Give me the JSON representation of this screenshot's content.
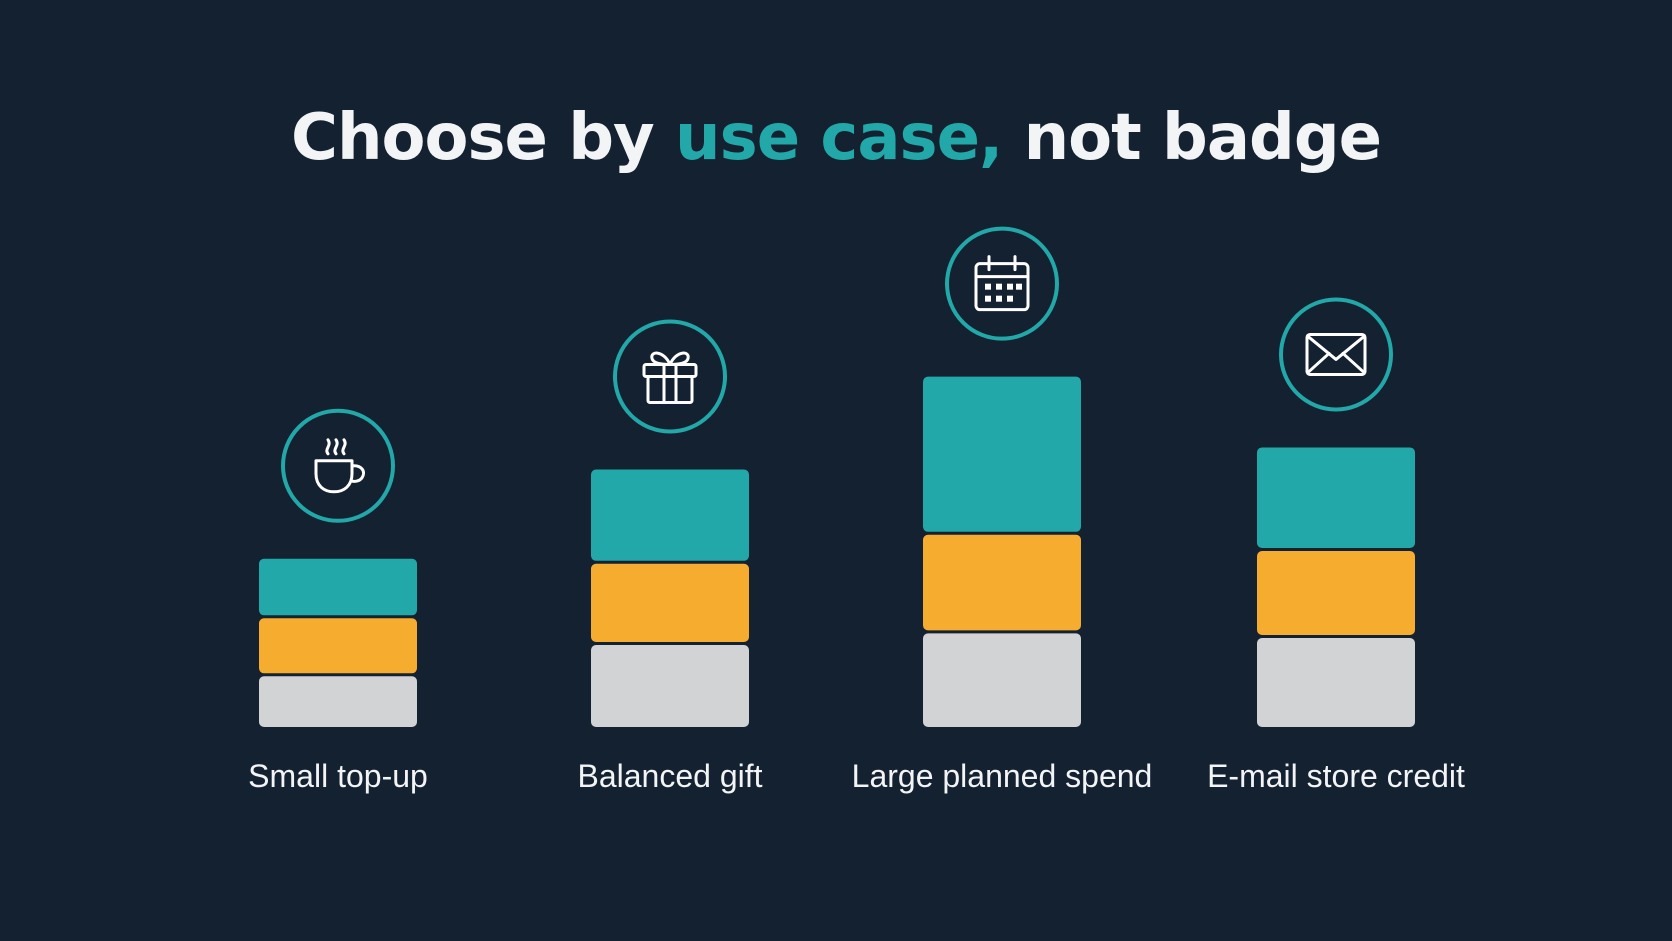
{
  "title": {
    "before": "Choose by ",
    "accent": "use case,",
    "after": " not badge"
  },
  "colors": {
    "background": "#142130",
    "accent": "#22a8a8",
    "ring": "#22a8a8",
    "title_text": "#f2f4f6"
  },
  "chart_data": {
    "type": "bar",
    "stacked": true,
    "categories": [
      "Small top-up",
      "Balanced gift",
      "Large planned spend",
      "E-mail store credit"
    ],
    "icons": [
      "coffee-cup-icon",
      "gift-icon",
      "calendar-icon",
      "envelope-icon"
    ],
    "ylim": [
      0,
      3.5
    ],
    "grid": false,
    "series": [
      {
        "values": [
          0.45,
          0.72,
          0.82,
          0.78
        ],
        "color": "#d2d3d5"
      },
      {
        "values": [
          0.5,
          0.7,
          0.85,
          0.75
        ],
        "color": "#f6ac2e"
      },
      {
        "values": [
          0.5,
          0.8,
          1.35,
          0.88
        ],
        "color": "#22a8a8"
      }
    ]
  }
}
